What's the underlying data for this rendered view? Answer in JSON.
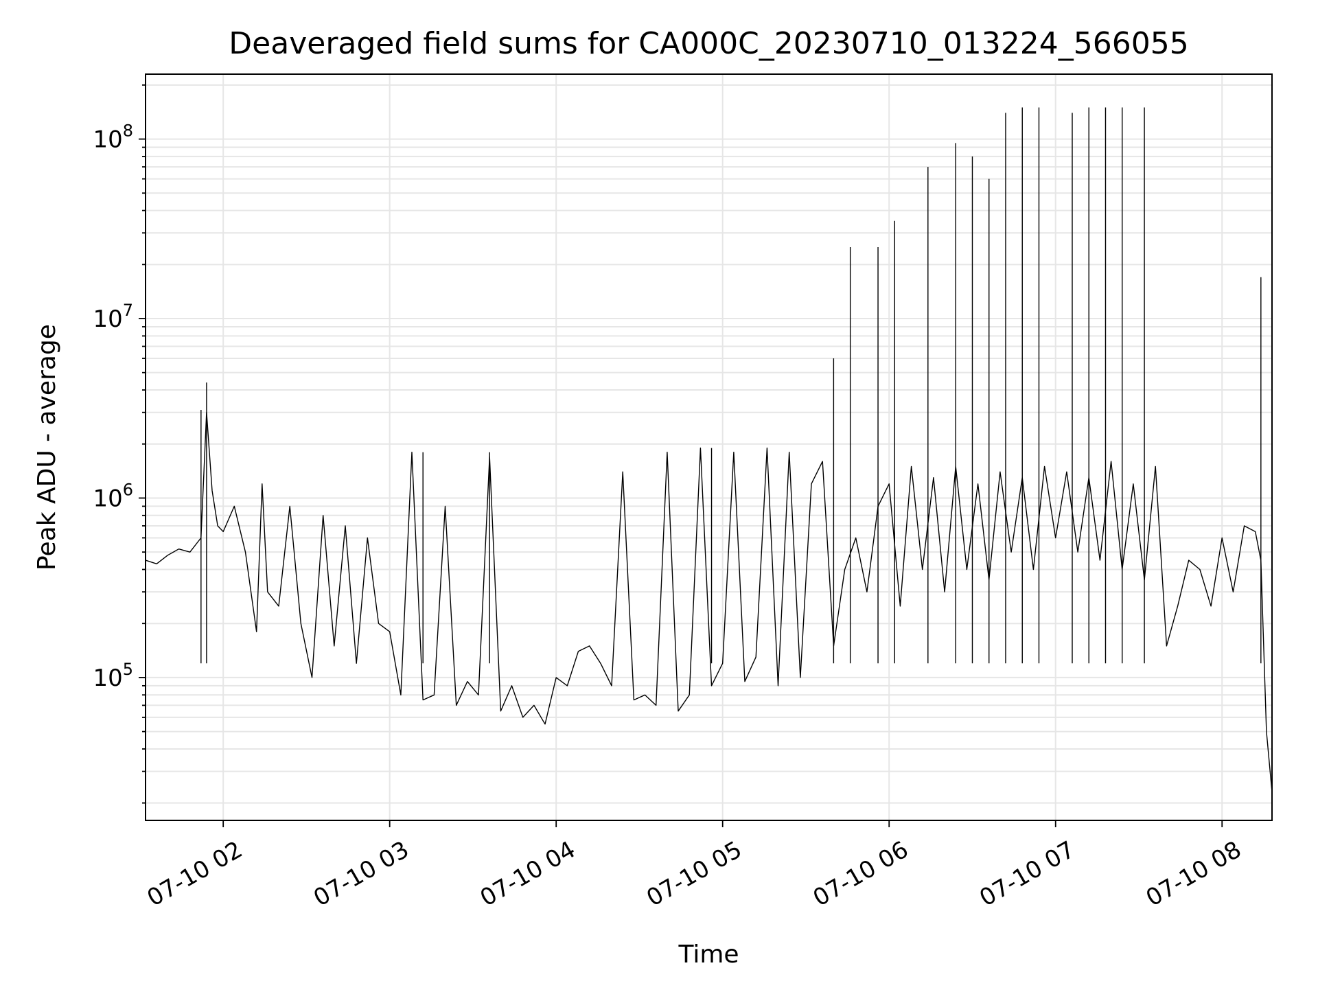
{
  "chart_data": {
    "type": "line",
    "title": "Deaveraged field sums for CA000C_20230710_013224_566055",
    "xlabel": "Time",
    "ylabel": "Peak ADU - average",
    "y_scale": "log",
    "grid": "major and minor",
    "line_color": "#000000",
    "xlim": [
      "2023-07-10 01:32",
      "2023-07-10 08:18"
    ],
    "ylim": [
      16000,
      230000000
    ],
    "x_ticks": [
      {
        "value": "2023-07-10 02:00",
        "label": "07-10 02"
      },
      {
        "value": "2023-07-10 03:00",
        "label": "07-10 03"
      },
      {
        "value": "2023-07-10 04:00",
        "label": "07-10 04"
      },
      {
        "value": "2023-07-10 05:00",
        "label": "07-10 05"
      },
      {
        "value": "2023-07-10 06:00",
        "label": "07-10 06"
      },
      {
        "value": "2023-07-10 07:00",
        "label": "07-10 07"
      },
      {
        "value": "2023-07-10 08:00",
        "label": "07-10 08"
      }
    ],
    "y_ticks": [
      {
        "value": 100000,
        "base": "10",
        "exp": "5"
      },
      {
        "value": 1000000,
        "base": "10",
        "exp": "6"
      },
      {
        "value": 10000000,
        "base": "10",
        "exp": "7"
      },
      {
        "value": 100000000,
        "base": "10",
        "exp": "8"
      }
    ],
    "series": [
      {
        "x": [
          "2023-07-10 01:32",
          "2023-07-10 01:36",
          "2023-07-10 01:40",
          "2023-07-10 01:44",
          "2023-07-10 01:48",
          "2023-07-10 01:52",
          "2023-07-10 01:54",
          "2023-07-10 01:56",
          "2023-07-10 01:58",
          "2023-07-10 02:00",
          "2023-07-10 02:04",
          "2023-07-10 02:08",
          "2023-07-10 02:12",
          "2023-07-10 02:14",
          "2023-07-10 02:16",
          "2023-07-10 02:20",
          "2023-07-10 02:24",
          "2023-07-10 02:28",
          "2023-07-10 02:32",
          "2023-07-10 02:36",
          "2023-07-10 02:40",
          "2023-07-10 02:44",
          "2023-07-10 02:48",
          "2023-07-10 02:52",
          "2023-07-10 02:56",
          "2023-07-10 03:00",
          "2023-07-10 03:04",
          "2023-07-10 03:08",
          "2023-07-10 03:12",
          "2023-07-10 03:16",
          "2023-07-10 03:20",
          "2023-07-10 03:24",
          "2023-07-10 03:28",
          "2023-07-10 03:32",
          "2023-07-10 03:36",
          "2023-07-10 03:40",
          "2023-07-10 03:44",
          "2023-07-10 03:48",
          "2023-07-10 03:52",
          "2023-07-10 03:56",
          "2023-07-10 04:00",
          "2023-07-10 04:04",
          "2023-07-10 04:08",
          "2023-07-10 04:12",
          "2023-07-10 04:16",
          "2023-07-10 04:20",
          "2023-07-10 04:24",
          "2023-07-10 04:28",
          "2023-07-10 04:32",
          "2023-07-10 04:36",
          "2023-07-10 04:40",
          "2023-07-10 04:44",
          "2023-07-10 04:48",
          "2023-07-10 04:52",
          "2023-07-10 04:56",
          "2023-07-10 05:00",
          "2023-07-10 05:04",
          "2023-07-10 05:08",
          "2023-07-10 05:12",
          "2023-07-10 05:16",
          "2023-07-10 05:20",
          "2023-07-10 05:24",
          "2023-07-10 05:28",
          "2023-07-10 05:32",
          "2023-07-10 05:36",
          "2023-07-10 05:40",
          "2023-07-10 05:44",
          "2023-07-10 05:48",
          "2023-07-10 05:52",
          "2023-07-10 05:56",
          "2023-07-10 06:00",
          "2023-07-10 06:04",
          "2023-07-10 06:08",
          "2023-07-10 06:12",
          "2023-07-10 06:16",
          "2023-07-10 06:20",
          "2023-07-10 06:24",
          "2023-07-10 06:28",
          "2023-07-10 06:32",
          "2023-07-10 06:36",
          "2023-07-10 06:40",
          "2023-07-10 06:44",
          "2023-07-10 06:48",
          "2023-07-10 06:52",
          "2023-07-10 06:56",
          "2023-07-10 07:00",
          "2023-07-10 07:04",
          "2023-07-10 07:08",
          "2023-07-10 07:12",
          "2023-07-10 07:16",
          "2023-07-10 07:20",
          "2023-07-10 07:24",
          "2023-07-10 07:28",
          "2023-07-10 07:32",
          "2023-07-10 07:36",
          "2023-07-10 07:40",
          "2023-07-10 07:44",
          "2023-07-10 07:48",
          "2023-07-10 07:52",
          "2023-07-10 07:56",
          "2023-07-10 08:00",
          "2023-07-10 08:04",
          "2023-07-10 08:08",
          "2023-07-10 08:12",
          "2023-07-10 08:14",
          "2023-07-10 08:16",
          "2023-07-10 08:18"
        ],
        "y": [
          450000,
          430000,
          480000,
          520000,
          500000,
          600000,
          3000000,
          1100000,
          700000,
          650000,
          900000,
          500000,
          180000,
          1200000,
          300000,
          250000,
          900000,
          200000,
          100000,
          800000,
          150000,
          700000,
          120000,
          600000,
          200000,
          180000,
          80000,
          1800000,
          75000,
          80000,
          900000,
          70000,
          95000,
          80000,
          1700000,
          65000,
          90000,
          60000,
          70000,
          55000,
          100000,
          90000,
          140000,
          150000,
          120000,
          90000,
          1400000,
          75000,
          80000,
          70000,
          1800000,
          65000,
          80000,
          1900000,
          90000,
          120000,
          1800000,
          95000,
          130000,
          1900000,
          90000,
          1800000,
          100000,
          1200000,
          1600000,
          150000,
          400000,
          600000,
          300000,
          900000,
          1200000,
          250000,
          1500000,
          400000,
          1300000,
          300000,
          1500000,
          400000,
          1200000,
          350000,
          1400000,
          500000,
          1300000,
          400000,
          1500000,
          600000,
          1400000,
          500000,
          1300000,
          450000,
          1600000,
          400000,
          1200000,
          350000,
          1500000,
          150000,
          250000,
          450000,
          400000,
          250000,
          600000,
          300000,
          700000,
          650000,
          450000,
          50000,
          23000
        ],
        "spikes": [
          {
            "x": "2023-07-10 01:52",
            "y": 3100000
          },
          {
            "x": "2023-07-10 01:54",
            "y": 4400000
          },
          {
            "x": "2023-07-10 03:12",
            "y": 1800000
          },
          {
            "x": "2023-07-10 03:36",
            "y": 1800000
          },
          {
            "x": "2023-07-10 04:56",
            "y": 1900000
          },
          {
            "x": "2023-07-10 05:40",
            "y": 6000000
          },
          {
            "x": "2023-07-10 05:46",
            "y": 25000000
          },
          {
            "x": "2023-07-10 05:56",
            "y": 25000000
          },
          {
            "x": "2023-07-10 06:02",
            "y": 35000000
          },
          {
            "x": "2023-07-10 06:14",
            "y": 70000000
          },
          {
            "x": "2023-07-10 06:24",
            "y": 95000000
          },
          {
            "x": "2023-07-10 06:30",
            "y": 80000000
          },
          {
            "x": "2023-07-10 06:36",
            "y": 60000000
          },
          {
            "x": "2023-07-10 06:42",
            "y": 140000000
          },
          {
            "x": "2023-07-10 06:48",
            "y": 150000000
          },
          {
            "x": "2023-07-10 06:54",
            "y": 150000000
          },
          {
            "x": "2023-07-10 07:06",
            "y": 140000000
          },
          {
            "x": "2023-07-10 07:12",
            "y": 150000000
          },
          {
            "x": "2023-07-10 07:18",
            "y": 150000000
          },
          {
            "x": "2023-07-10 07:24",
            "y": 150000000
          },
          {
            "x": "2023-07-10 07:32",
            "y": 150000000
          },
          {
            "x": "2023-07-10 08:14",
            "y": 17000000
          }
        ]
      }
    ]
  }
}
